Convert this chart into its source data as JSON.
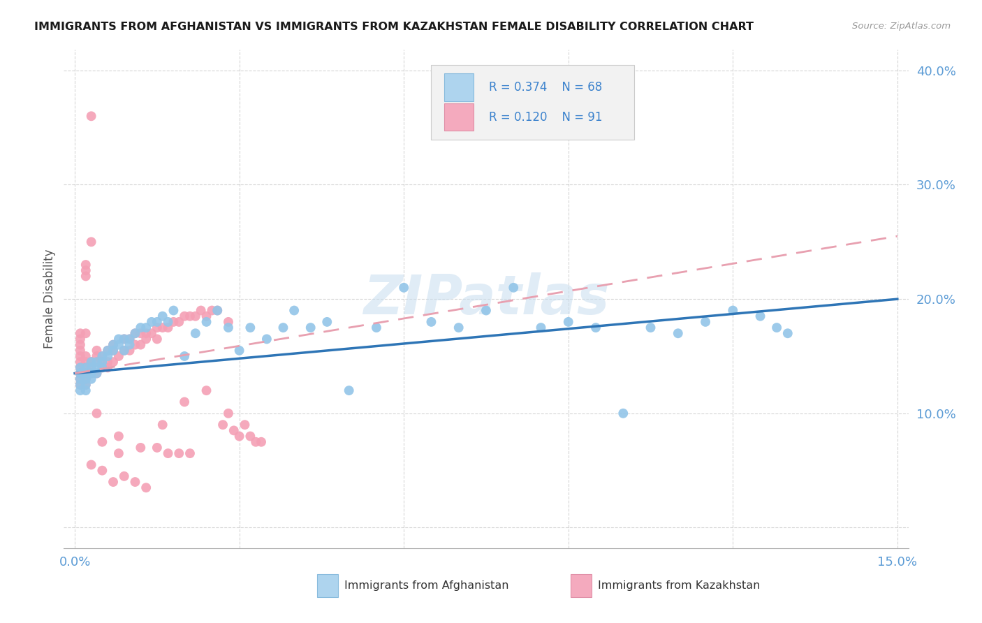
{
  "title": "IMMIGRANTS FROM AFGHANISTAN VS IMMIGRANTS FROM KAZAKHSTAN FEMALE DISABILITY CORRELATION CHART",
  "source": "Source: ZipAtlas.com",
  "ylabel": "Female Disability",
  "xlim": [
    0.0,
    0.15
  ],
  "ylim": [
    0.0,
    0.42
  ],
  "color_blue": "#92C5E8",
  "color_blue_line": "#2E75B6",
  "color_pink": "#F4A0B5",
  "color_pink_line": "#E8A0B0",
  "color_tick": "#5B9BD5",
  "watermark": "ZIPatlas",
  "legend_r1": "R = 0.374",
  "legend_n1": "N = 68",
  "legend_r2": "R = 0.120",
  "legend_n2": "N = 91",
  "af_x": [
    0.001,
    0.001,
    0.001,
    0.001,
    0.001,
    0.002,
    0.002,
    0.002,
    0.002,
    0.002,
    0.003,
    0.003,
    0.003,
    0.003,
    0.004,
    0.004,
    0.004,
    0.005,
    0.005,
    0.005,
    0.006,
    0.006,
    0.007,
    0.007,
    0.008,
    0.008,
    0.009,
    0.009,
    0.01,
    0.01,
    0.011,
    0.012,
    0.013,
    0.014,
    0.015,
    0.016,
    0.017,
    0.018,
    0.02,
    0.022,
    0.024,
    0.026,
    0.028,
    0.03,
    0.032,
    0.035,
    0.038,
    0.04,
    0.043,
    0.046,
    0.05,
    0.055,
    0.06,
    0.065,
    0.07,
    0.075,
    0.08,
    0.085,
    0.09,
    0.095,
    0.1,
    0.105,
    0.11,
    0.115,
    0.12,
    0.125,
    0.128,
    0.13
  ],
  "af_y": [
    0.14,
    0.135,
    0.13,
    0.125,
    0.12,
    0.14,
    0.135,
    0.13,
    0.125,
    0.12,
    0.145,
    0.14,
    0.135,
    0.13,
    0.145,
    0.14,
    0.135,
    0.15,
    0.145,
    0.14,
    0.155,
    0.15,
    0.16,
    0.155,
    0.165,
    0.16,
    0.155,
    0.165,
    0.165,
    0.16,
    0.17,
    0.175,
    0.175,
    0.18,
    0.18,
    0.185,
    0.18,
    0.19,
    0.15,
    0.17,
    0.18,
    0.19,
    0.175,
    0.155,
    0.175,
    0.165,
    0.175,
    0.19,
    0.175,
    0.18,
    0.12,
    0.175,
    0.21,
    0.18,
    0.175,
    0.19,
    0.21,
    0.175,
    0.18,
    0.175,
    0.1,
    0.175,
    0.17,
    0.18,
    0.19,
    0.185,
    0.175,
    0.17
  ],
  "kz_x": [
    0.001,
    0.001,
    0.001,
    0.001,
    0.001,
    0.001,
    0.001,
    0.001,
    0.001,
    0.001,
    0.002,
    0.002,
    0.002,
    0.002,
    0.002,
    0.002,
    0.002,
    0.002,
    0.002,
    0.002,
    0.003,
    0.003,
    0.003,
    0.003,
    0.003,
    0.003,
    0.004,
    0.004,
    0.004,
    0.004,
    0.005,
    0.005,
    0.005,
    0.005,
    0.006,
    0.006,
    0.006,
    0.007,
    0.007,
    0.007,
    0.008,
    0.008,
    0.009,
    0.009,
    0.01,
    0.01,
    0.011,
    0.011,
    0.012,
    0.012,
    0.013,
    0.013,
    0.014,
    0.015,
    0.015,
    0.016,
    0.017,
    0.018,
    0.019,
    0.02,
    0.021,
    0.022,
    0.023,
    0.024,
    0.025,
    0.026,
    0.027,
    0.028,
    0.029,
    0.03,
    0.031,
    0.032,
    0.033,
    0.034,
    0.003,
    0.005,
    0.007,
    0.009,
    0.011,
    0.013,
    0.015,
    0.017,
    0.019,
    0.021,
    0.004,
    0.008,
    0.012,
    0.016,
    0.02,
    0.024,
    0.028
  ],
  "kz_y": [
    0.135,
    0.14,
    0.145,
    0.15,
    0.155,
    0.125,
    0.13,
    0.16,
    0.165,
    0.17,
    0.135,
    0.14,
    0.145,
    0.15,
    0.125,
    0.13,
    0.17,
    0.22,
    0.225,
    0.23,
    0.14,
    0.145,
    0.135,
    0.25,
    0.36,
    0.145,
    0.135,
    0.145,
    0.15,
    0.155,
    0.14,
    0.145,
    0.15,
    0.075,
    0.14,
    0.145,
    0.155,
    0.145,
    0.155,
    0.16,
    0.15,
    0.08,
    0.155,
    0.165,
    0.155,
    0.165,
    0.16,
    0.17,
    0.16,
    0.17,
    0.165,
    0.17,
    0.17,
    0.165,
    0.175,
    0.175,
    0.175,
    0.18,
    0.18,
    0.185,
    0.185,
    0.185,
    0.19,
    0.185,
    0.19,
    0.19,
    0.09,
    0.18,
    0.085,
    0.08,
    0.09,
    0.08,
    0.075,
    0.075,
    0.055,
    0.05,
    0.04,
    0.045,
    0.04,
    0.035,
    0.07,
    0.065,
    0.065,
    0.065,
    0.1,
    0.065,
    0.07,
    0.09,
    0.11,
    0.12,
    0.1
  ]
}
